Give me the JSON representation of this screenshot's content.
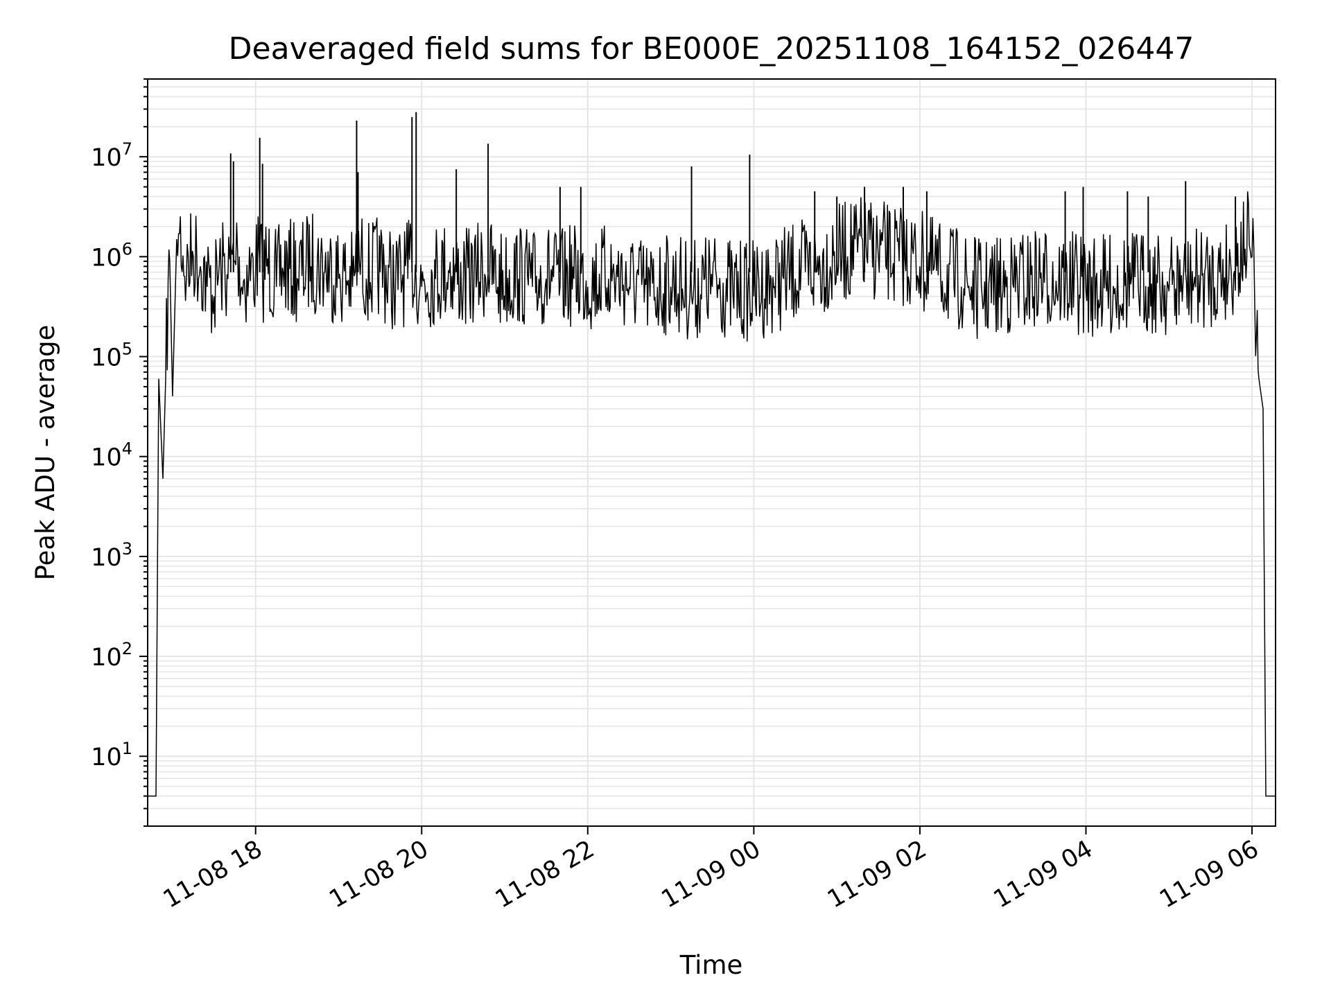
{
  "chart_data": {
    "type": "line",
    "title": "Deaveraged field sums for BE000E_20251108_164152_026447",
    "xlabel": "Time",
    "ylabel": "Peak ADU - average",
    "yscale": "log",
    "ylim": [
      2,
      60000000
    ],
    "xlim": [
      "2025-11-08 16:42",
      "2025-11-09 06:17"
    ],
    "grid": true,
    "legend": "none",
    "line_color": "#000000",
    "grid_color": "#e6e6e6",
    "x_ticks": [
      "11-08 18",
      "11-08 20",
      "11-08 22",
      "11-09 00",
      "11-09 02",
      "11-09 04",
      "11-09 06"
    ],
    "x_tick_times": [
      "2025-11-08 18:00",
      "2025-11-08 20:00",
      "2025-11-08 22:00",
      "2025-11-09 00:00",
      "2025-11-09 02:00",
      "2025-11-09 04:00",
      "2025-11-09 06:00"
    ],
    "y_ticks": [
      {
        "exp": "1",
        "value": 10
      },
      {
        "exp": "2",
        "value": 100
      },
      {
        "exp": "3",
        "value": 1000
      },
      {
        "exp": "4",
        "value": 10000
      },
      {
        "exp": "5",
        "value": 100000
      },
      {
        "exp": "6",
        "value": 1000000
      },
      {
        "exp": "7",
        "value": 10000000
      }
    ],
    "y_tick_base": "10",
    "series": [
      {
        "x": [
          "2025-11-08 16:42",
          "2025-11-08 16:47",
          "2025-11-08 16:48",
          "2025-11-08 16:50",
          "2025-11-08 16:53",
          "2025-11-08 16:55",
          "2025-11-08 16:58",
          "2025-11-08 17:00",
          "2025-11-08 17:03",
          "2025-11-08 17:05",
          "2025-11-08 17:10",
          "2025-11-08 17:15",
          "2025-11-08 17:20",
          "2025-11-08 17:25",
          "2025-11-08 17:30",
          "2025-11-08 17:35",
          "2025-11-08 17:40",
          "2025-11-08 17:45",
          "2025-11-08 17:47",
          "2025-11-08 17:50",
          "2025-11-08 17:55",
          "2025-11-08 18:00",
          "2025-11-08 18:03",
          "2025-11-08 18:05",
          "2025-11-08 18:08",
          "2025-11-08 18:15",
          "2025-11-08 18:20",
          "2025-11-08 18:30",
          "2025-11-08 18:40",
          "2025-11-08 18:50",
          "2025-11-08 19:00",
          "2025-11-08 19:10",
          "2025-11-08 19:12",
          "2025-11-08 19:15",
          "2025-11-08 19:20",
          "2025-11-08 19:30",
          "2025-11-08 19:40",
          "2025-11-08 19:50",
          "2025-11-08 19:53",
          "2025-11-08 19:56",
          "2025-11-08 20:00",
          "2025-11-08 20:10",
          "2025-11-08 20:20",
          "2025-11-08 20:30",
          "2025-11-08 20:40",
          "2025-11-08 20:48",
          "2025-11-08 20:55",
          "2025-11-08 21:10",
          "2025-11-08 21:20",
          "2025-11-08 21:30",
          "2025-11-08 21:40",
          "2025-11-08 21:50",
          "2025-11-08 22:00",
          "2025-11-08 22:15",
          "2025-11-08 22:30",
          "2025-11-08 22:45",
          "2025-11-08 23:00",
          "2025-11-08 23:15",
          "2025-11-08 23:30",
          "2025-11-08 23:45",
          "2025-11-09 00:00",
          "2025-11-09 00:15",
          "2025-11-09 00:30",
          "2025-11-09 00:45",
          "2025-11-09 01:00",
          "2025-11-09 01:15",
          "2025-11-09 01:30",
          "2025-11-09 01:45",
          "2025-11-09 02:00",
          "2025-11-09 02:15",
          "2025-11-09 02:30",
          "2025-11-09 02:45",
          "2025-11-09 03:00",
          "2025-11-09 03:15",
          "2025-11-09 03:30",
          "2025-11-09 03:45",
          "2025-11-09 04:00",
          "2025-11-09 04:15",
          "2025-11-09 04:30",
          "2025-11-09 04:45",
          "2025-11-09 05:00",
          "2025-11-09 05:15",
          "2025-11-09 05:30",
          "2025-11-09 05:45",
          "2025-11-09 05:55",
          "2025-11-09 05:58",
          "2025-11-09 06:00",
          "2025-11-09 06:02",
          "2025-11-09 06:05",
          "2025-11-09 06:08",
          "2025-11-09 06:10",
          "2025-11-09 06:17"
        ],
        "values": [
          4,
          4,
          4,
          60000,
          6000,
          60000,
          900000,
          40000,
          1500000,
          1700000,
          600000,
          1000000,
          800000,
          500000,
          400000,
          700000,
          600000,
          900000,
          1100000,
          500000,
          600000,
          700000,
          900000,
          600000,
          800000,
          500000,
          700000,
          600000,
          800000,
          700000,
          600000,
          500000,
          700000,
          900000,
          600000,
          700000,
          500000,
          600000,
          800000,
          600000,
          500000,
          600000,
          700000,
          500000,
          600000,
          700000,
          500000,
          600000,
          500000,
          600000,
          500000,
          600000,
          500000,
          600000,
          500000,
          400000,
          500000,
          400000,
          500000,
          400000,
          400000,
          500000,
          600000,
          700000,
          900000,
          1100000,
          1000000,
          900000,
          800000,
          600000,
          500000,
          400000,
          450000,
          500000,
          550000,
          500000,
          450000,
          450000,
          500000,
          500000,
          450000,
          500000,
          550000,
          700000,
          1200000,
          1300000,
          1000000,
          300000,
          60000,
          30000,
          4,
          4
        ]
      }
    ],
    "spikes": [
      {
        "x": "2025-11-08 17:42",
        "value": 10800000
      },
      {
        "x": "2025-11-08 17:44",
        "value": 9000000
      },
      {
        "x": "2025-11-08 18:03",
        "value": 15500000
      },
      {
        "x": "2025-11-08 18:05",
        "value": 8500000
      },
      {
        "x": "2025-11-08 19:13",
        "value": 23000000
      },
      {
        "x": "2025-11-08 19:14",
        "value": 7000000
      },
      {
        "x": "2025-11-08 19:53",
        "value": 25000000
      },
      {
        "x": "2025-11-08 19:56",
        "value": 28000000
      },
      {
        "x": "2025-11-08 20:25",
        "value": 7500000
      },
      {
        "x": "2025-11-08 20:48",
        "value": 13500000
      },
      {
        "x": "2025-11-08 21:40",
        "value": 5000000
      },
      {
        "x": "2025-11-08 21:55",
        "value": 5000000
      },
      {
        "x": "2025-11-08 23:15",
        "value": 8000000
      },
      {
        "x": "2025-11-08 23:57",
        "value": 10500000
      },
      {
        "x": "2025-11-09 00:44",
        "value": 4500000
      },
      {
        "x": "2025-11-09 01:00",
        "value": 4000000
      },
      {
        "x": "2025-11-09 01:20",
        "value": 5000000
      },
      {
        "x": "2025-11-09 01:48",
        "value": 5000000
      },
      {
        "x": "2025-11-09 02:05",
        "value": 4500000
      },
      {
        "x": "2025-11-09 03:45",
        "value": 4500000
      },
      {
        "x": "2025-11-09 03:58",
        "value": 5000000
      },
      {
        "x": "2025-11-09 04:30",
        "value": 4500000
      },
      {
        "x": "2025-11-09 04:45",
        "value": 4000000
      },
      {
        "x": "2025-11-09 05:12",
        "value": 5700000
      },
      {
        "x": "2025-11-09 05:48",
        "value": 4000000
      }
    ]
  }
}
